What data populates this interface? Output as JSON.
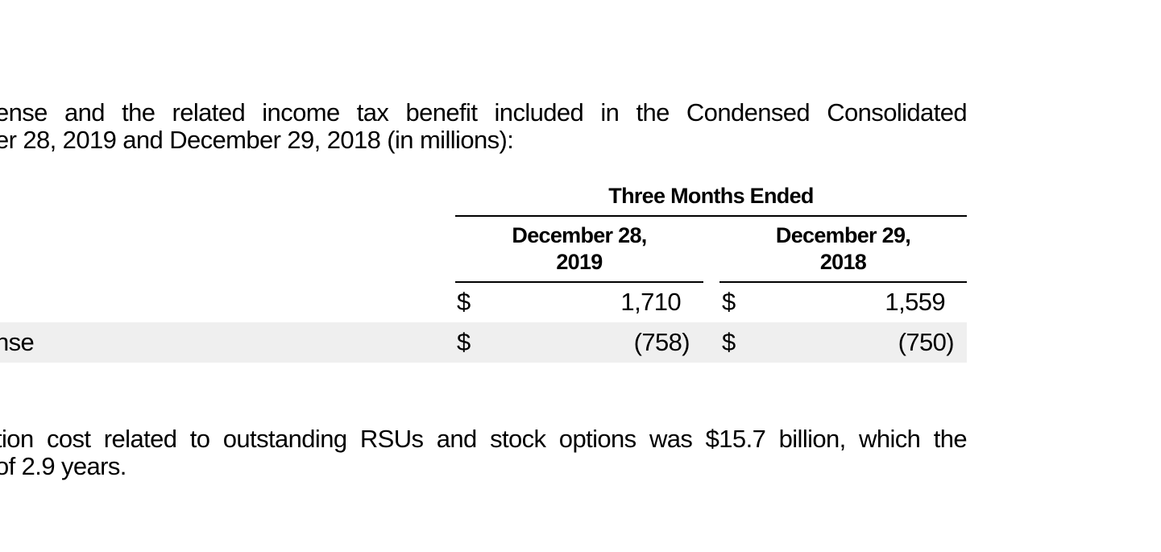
{
  "paragraph_1": {
    "line_1": "ense and the related income tax benefit included in the Condensed Consolidated",
    "line_2": "er 28, 2019 and December 29, 2018 (in millions):"
  },
  "table": {
    "group_header": "Three Months Ended",
    "columns": [
      {
        "line_1": "December 28,",
        "line_2": "2019"
      },
      {
        "line_1": "December 29,",
        "line_2": "2018"
      }
    ],
    "rows": [
      {
        "label": "",
        "cells": [
          {
            "currency": "$",
            "value": "1,710"
          },
          {
            "currency": "$",
            "value": "1,559"
          }
        ]
      },
      {
        "label": "nse",
        "cells": [
          {
            "currency": "$",
            "value": "(758)"
          },
          {
            "currency": "$",
            "value": "(750)"
          }
        ]
      }
    ],
    "shaded_row_color": "#efefef"
  },
  "paragraph_2": {
    "line_1": "tion cost related to outstanding RSUs and stock options was $15.7 billion, which the",
    "line_2": "of 2.9 years."
  }
}
